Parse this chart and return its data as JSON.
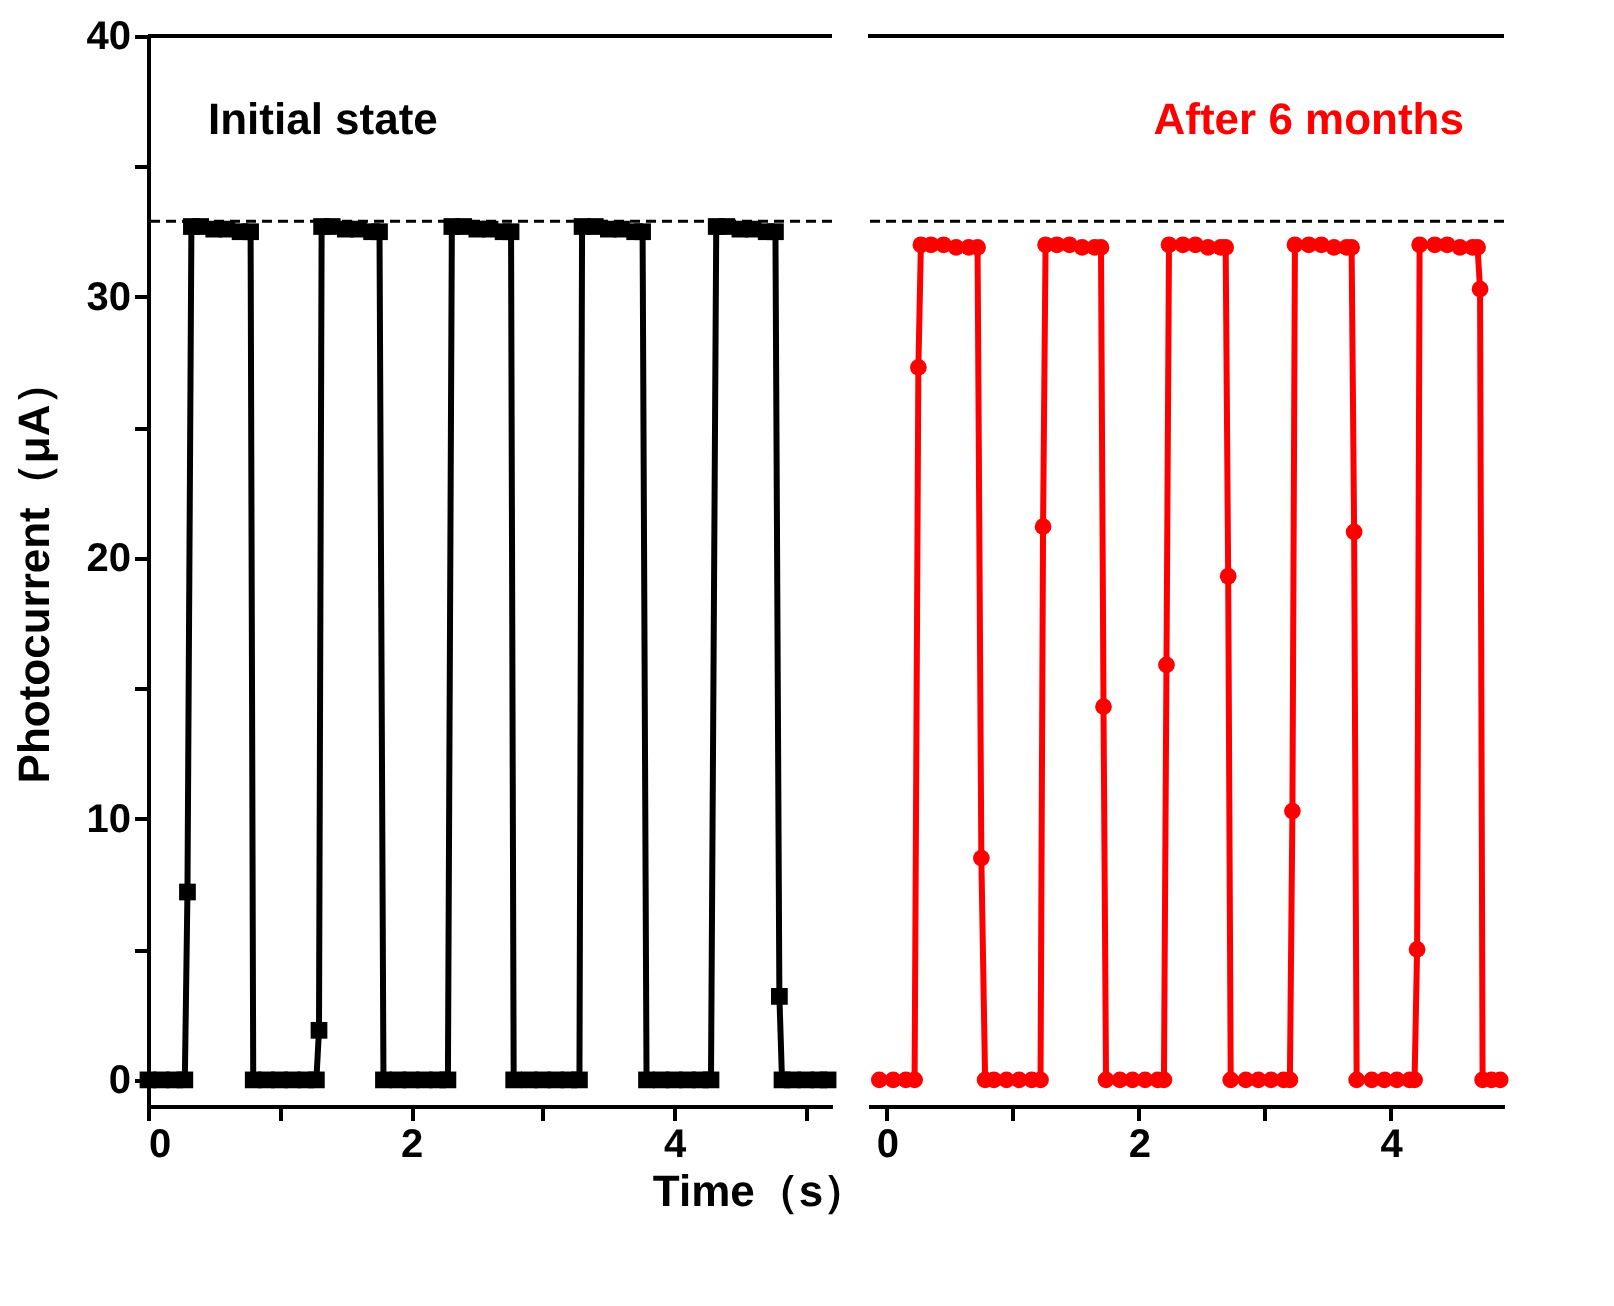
{
  "chart_data": [
    {
      "type": "line",
      "ylabel": "Photocurrent（μA）",
      "xlabel": "Time（s）",
      "annotations": [
        "Initial state"
      ],
      "xlim": [
        0,
        5.2
      ],
      "ylim": [
        -1,
        40
      ],
      "xticks": [
        0,
        {
          "value": 1,
          "label": null
        },
        2,
        {
          "value": 3,
          "label": null
        },
        4,
        {
          "value": 5,
          "label": null
        }
      ],
      "yticks": [
        0,
        {
          "value": 5,
          "label": null
        },
        10,
        {
          "value": 15,
          "label": null
        },
        20,
        {
          "value": 25,
          "label": null
        },
        30,
        {
          "value": 35,
          "label": null
        },
        40
      ],
      "grid": false,
      "line_style": "solid",
      "ref_lines": [
        {
          "axis": "y",
          "value": 32.9,
          "color": "#000000",
          "line_style": "dashed"
        }
      ],
      "series": [
        {
          "color": "#000000",
          "marker": "square",
          "x": [
            0,
            0.1,
            0.2,
            0.28,
            0.3,
            0.33,
            0.4,
            0.5,
            0.6,
            0.7,
            0.78,
            0.8,
            0.9,
            1.0,
            1.1,
            1.2,
            1.28,
            1.3,
            1.32,
            1.4,
            1.5,
            1.6,
            1.7,
            1.76,
            1.79,
            1.9,
            2.0,
            2.1,
            2.2,
            2.28,
            2.31,
            2.4,
            2.5,
            2.6,
            2.7,
            2.76,
            2.78,
            2.9,
            3.0,
            3.1,
            3.2,
            3.28,
            3.3,
            3.4,
            3.5,
            3.6,
            3.7,
            3.76,
            3.79,
            3.9,
            4.0,
            4.1,
            4.2,
            4.28,
            4.32,
            4.4,
            4.5,
            4.6,
            4.7,
            4.77,
            4.8,
            4.82,
            4.9,
            5.0,
            5.1,
            5.17
          ],
          "values": [
            0,
            0,
            0,
            0,
            7.2,
            32.7,
            32.7,
            32.6,
            32.6,
            32.5,
            32.5,
            0,
            0,
            0,
            0,
            0,
            0,
            1.9,
            32.7,
            32.7,
            32.6,
            32.6,
            32.5,
            32.5,
            0,
            0,
            0,
            0,
            0,
            0,
            32.7,
            32.7,
            32.6,
            32.6,
            32.5,
            32.5,
            0,
            0,
            0,
            0,
            0,
            0,
            32.7,
            32.7,
            32.6,
            32.6,
            32.5,
            32.5,
            0,
            0,
            0,
            0,
            0,
            0,
            32.7,
            32.7,
            32.6,
            32.6,
            32.5,
            32.5,
            3.2,
            0,
            0,
            0,
            0,
            0
          ]
        }
      ]
    },
    {
      "type": "line",
      "annotations": [
        "After 6 months"
      ],
      "xlim": [
        -0.15,
        4.9
      ],
      "ylim": [
        -1,
        40
      ],
      "tick_labels": "x",
      "xticks": [
        0,
        {
          "value": 1,
          "label": null
        },
        2,
        {
          "value": 3,
          "label": null
        },
        4
      ],
      "grid": false,
      "line_style": "solid",
      "ref_lines": [
        {
          "axis": "y",
          "value": 32.9,
          "color": "#000000",
          "line_style": "dashed"
        }
      ],
      "series": [
        {
          "color": "#ff0000",
          "marker": "circle",
          "x": [
            -0.06,
            0.05,
            0.15,
            0.22,
            0.25,
            0.27,
            0.35,
            0.45,
            0.55,
            0.65,
            0.72,
            0.75,
            0.78,
            0.85,
            0.95,
            1.05,
            1.15,
            1.22,
            1.24,
            1.26,
            1.35,
            1.45,
            1.55,
            1.65,
            1.7,
            1.72,
            1.74,
            1.85,
            1.95,
            2.05,
            2.15,
            2.2,
            2.22,
            2.24,
            2.35,
            2.45,
            2.55,
            2.65,
            2.69,
            2.71,
            2.73,
            2.85,
            2.95,
            3.05,
            3.15,
            3.2,
            3.22,
            3.24,
            3.35,
            3.45,
            3.55,
            3.65,
            3.69,
            3.71,
            3.73,
            3.85,
            3.95,
            4.05,
            4.15,
            4.19,
            4.21,
            4.23,
            4.35,
            4.45,
            4.55,
            4.65,
            4.69,
            4.71,
            4.73,
            4.8,
            4.87
          ],
          "values": [
            0,
            0,
            0,
            0,
            27.3,
            32.0,
            32.0,
            32.0,
            31.9,
            31.9,
            31.9,
            8.5,
            0,
            0,
            0,
            0,
            0,
            0,
            21.2,
            32.0,
            32.0,
            32.0,
            31.9,
            31.9,
            31.9,
            14.3,
            0,
            0,
            0,
            0,
            0,
            0,
            15.9,
            32.0,
            32.0,
            32.0,
            31.9,
            31.9,
            31.9,
            19.3,
            0,
            0,
            0,
            0,
            0,
            0,
            10.3,
            32.0,
            32.0,
            32.0,
            31.9,
            31.9,
            31.9,
            21.0,
            0,
            0,
            0,
            0,
            0,
            0,
            5.0,
            32.0,
            32.0,
            32.0,
            31.9,
            31.9,
            31.9,
            30.3,
            0,
            0,
            0
          ]
        }
      ]
    }
  ]
}
